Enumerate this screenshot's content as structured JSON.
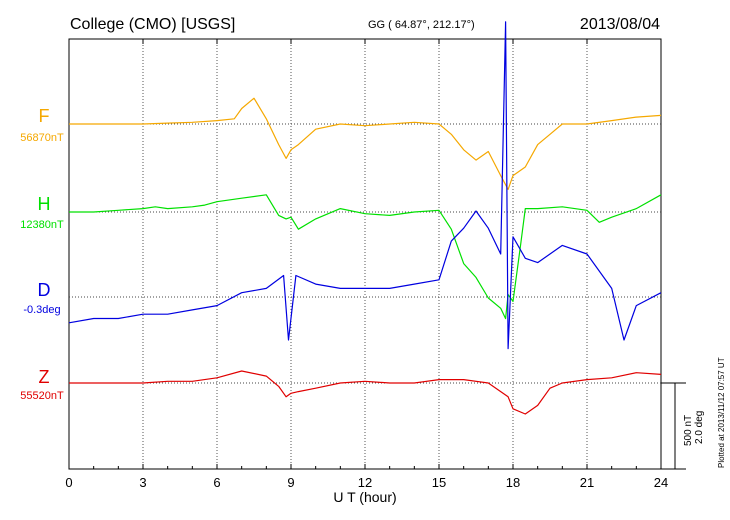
{
  "header": {
    "station": "College (CMO)  [USGS]",
    "coords": "GG ( 64.87°, 212.17°)",
    "date": "2013/08/04"
  },
  "footer": {
    "plotted": "Plotted at 2013/11/12 07:57 UT"
  },
  "scale": {
    "nt": "500 nT",
    "deg": "2.0 deg"
  },
  "chart_data": {
    "type": "line",
    "xlabel": "U T (hour)",
    "ylabel": "",
    "xlim": [
      0,
      24
    ],
    "x_ticks": [
      "0",
      "3",
      "6",
      "9",
      "12",
      "15",
      "18",
      "21",
      "24"
    ],
    "grid": true,
    "series": [
      {
        "name": "F",
        "baseline_label": "56870nT",
        "color": "#f5a800",
        "points": [
          [
            0,
            0
          ],
          [
            1,
            0
          ],
          [
            2,
            0
          ],
          [
            3,
            0
          ],
          [
            4,
            5
          ],
          [
            5,
            10
          ],
          [
            6,
            20
          ],
          [
            6.7,
            30
          ],
          [
            7,
            90
          ],
          [
            7.5,
            150
          ],
          [
            8,
            30
          ],
          [
            8.5,
            -120
          ],
          [
            8.8,
            -200
          ],
          [
            9,
            -150
          ],
          [
            9.3,
            -120
          ],
          [
            10,
            -30
          ],
          [
            11,
            0
          ],
          [
            12,
            -10
          ],
          [
            13,
            0
          ],
          [
            14,
            10
          ],
          [
            15,
            0
          ],
          [
            15.5,
            -60
          ],
          [
            16,
            -150
          ],
          [
            16.5,
            -210
          ],
          [
            17,
            -160
          ],
          [
            17.5,
            -300
          ],
          [
            17.8,
            -380
          ],
          [
            18,
            -300
          ],
          [
            18.5,
            -250
          ],
          [
            19,
            -120
          ],
          [
            19.5,
            -60
          ],
          [
            20,
            0
          ],
          [
            21,
            0
          ],
          [
            22,
            20
          ],
          [
            23,
            40
          ],
          [
            24,
            50
          ]
        ]
      },
      {
        "name": "H",
        "baseline_label": "12380nT",
        "color": "#00e000",
        "points": [
          [
            0,
            0
          ],
          [
            1,
            0
          ],
          [
            2,
            10
          ],
          [
            3,
            20
          ],
          [
            3.5,
            30
          ],
          [
            4,
            20
          ],
          [
            5,
            30
          ],
          [
            5.5,
            40
          ],
          [
            6,
            60
          ],
          [
            7,
            80
          ],
          [
            8,
            100
          ],
          [
            8.5,
            -20
          ],
          [
            8.8,
            -40
          ],
          [
            9,
            -30
          ],
          [
            9.3,
            -100
          ],
          [
            10,
            -40
          ],
          [
            11,
            20
          ],
          [
            12,
            -10
          ],
          [
            13,
            -20
          ],
          [
            14,
            0
          ],
          [
            15,
            10
          ],
          [
            15.5,
            -100
          ],
          [
            16,
            -300
          ],
          [
            16.5,
            -380
          ],
          [
            17,
            -500
          ],
          [
            17.5,
            -560
          ],
          [
            17.7,
            -620
          ],
          [
            17.8,
            -480
          ],
          [
            18,
            -520
          ],
          [
            18.3,
            -200
          ],
          [
            18.5,
            20
          ],
          [
            19,
            20
          ],
          [
            20,
            30
          ],
          [
            21,
            10
          ],
          [
            21.5,
            -60
          ],
          [
            22,
            -30
          ],
          [
            23,
            20
          ],
          [
            24,
            100
          ]
        ]
      },
      {
        "name": "D",
        "baseline_label": "-0.3deg",
        "color": "#0000e0",
        "points": [
          [
            0,
            -0.6
          ],
          [
            1,
            -0.5
          ],
          [
            2,
            -0.5
          ],
          [
            3,
            -0.4
          ],
          [
            4,
            -0.4
          ],
          [
            5,
            -0.3
          ],
          [
            6,
            -0.2
          ],
          [
            7,
            0.1
          ],
          [
            8,
            0.2
          ],
          [
            8.7,
            0.5
          ],
          [
            8.9,
            -1.0
          ],
          [
            9.2,
            0.5
          ],
          [
            10,
            0.3
          ],
          [
            11,
            0.2
          ],
          [
            12,
            0.2
          ],
          [
            13,
            0.2
          ],
          [
            14,
            0.3
          ],
          [
            15,
            0.4
          ],
          [
            15.5,
            1.3
          ],
          [
            16,
            1.6
          ],
          [
            16.5,
            2.0
          ],
          [
            17,
            1.6
          ],
          [
            17.5,
            1.0
          ],
          [
            17.7,
            6.4
          ],
          [
            17.8,
            -1.2
          ],
          [
            18,
            1.4
          ],
          [
            18.5,
            0.9
          ],
          [
            19,
            0.8
          ],
          [
            20,
            1.2
          ],
          [
            21,
            1.0
          ],
          [
            22,
            0.2
          ],
          [
            22.5,
            -1.0
          ],
          [
            23,
            -0.2
          ],
          [
            24,
            0.1
          ]
        ]
      },
      {
        "name": "Z",
        "baseline_label": "55520nT",
        "color": "#e00000",
        "points": [
          [
            0,
            0
          ],
          [
            1,
            0
          ],
          [
            2,
            0
          ],
          [
            3,
            0
          ],
          [
            4,
            10
          ],
          [
            5,
            10
          ],
          [
            6,
            30
          ],
          [
            7,
            70
          ],
          [
            8,
            40
          ],
          [
            8.5,
            -20
          ],
          [
            8.8,
            -80
          ],
          [
            9,
            -60
          ],
          [
            9.3,
            -50
          ],
          [
            10,
            -30
          ],
          [
            11,
            0
          ],
          [
            12,
            10
          ],
          [
            13,
            0
          ],
          [
            14,
            0
          ],
          [
            15,
            20
          ],
          [
            16,
            20
          ],
          [
            17,
            0
          ],
          [
            17.5,
            -50
          ],
          [
            17.8,
            -80
          ],
          [
            18,
            -150
          ],
          [
            18.5,
            -180
          ],
          [
            19,
            -130
          ],
          [
            19.5,
            -30
          ],
          [
            20,
            0
          ],
          [
            21,
            20
          ],
          [
            22,
            30
          ],
          [
            23,
            60
          ],
          [
            24,
            50
          ]
        ]
      }
    ]
  }
}
